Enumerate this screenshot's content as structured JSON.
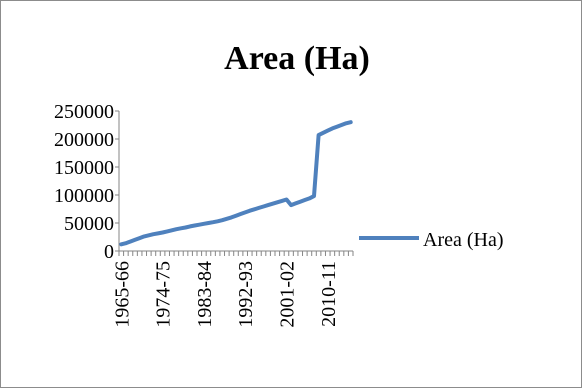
{
  "chart_data": {
    "type": "line",
    "title": "Area (Ha)",
    "xlabel": "",
    "ylabel": "",
    "ylim": [
      0,
      250000
    ],
    "yticks": [
      0,
      50000,
      100000,
      150000,
      200000,
      250000
    ],
    "ytick_labels": [
      "0",
      "50000",
      "100000",
      "150000",
      "200000",
      "250000"
    ],
    "xtick_labels": [
      "1965-66",
      "1974-75",
      "1983-84",
      "1992-93",
      "2001-02",
      "2010-11"
    ],
    "grid": false,
    "legend_position": "right",
    "series": [
      {
        "name": "Area (Ha)",
        "color": "#4f81bd",
        "values": [
          12000,
          14000,
          17000,
          20000,
          23000,
          26000,
          28000,
          30000,
          31500,
          33000,
          35000,
          37000,
          39000,
          40500,
          42000,
          44000,
          45500,
          47000,
          48500,
          50000,
          51500,
          53000,
          55000,
          57500,
          60000,
          63000,
          66000,
          69000,
          72000,
          74500,
          77000,
          79500,
          82000,
          84500,
          87000,
          89500,
          92000,
          82000,
          85000,
          88000,
          91000,
          94000,
          98000,
          207000,
          211000,
          215000,
          219000,
          222000,
          225000,
          228000,
          230000
        ]
      }
    ]
  }
}
